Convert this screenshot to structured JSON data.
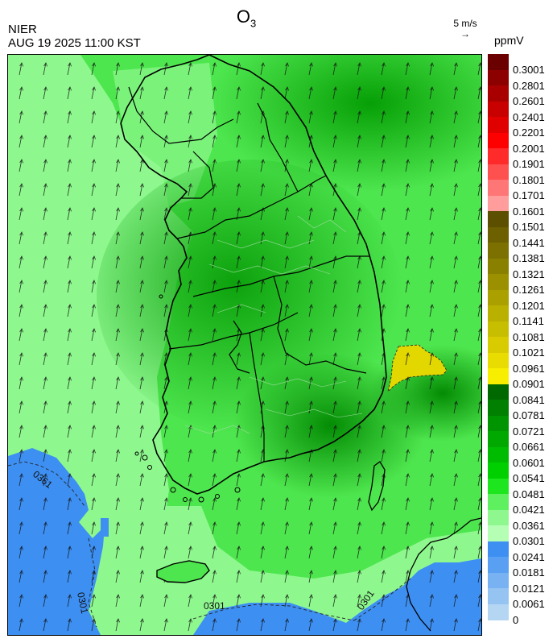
{
  "header": {
    "title_main": "O",
    "title_sub": "3",
    "agency": "NIER",
    "timestamp": "AUG 19 2025 11:00 KST",
    "wind_ref_label": "5 m/s",
    "wind_ref_arrow": "→"
  },
  "legend": {
    "unit": "ppmV",
    "levels": [
      {
        "label": "0.3001",
        "color": "#6b0000"
      },
      {
        "label": "0.2801",
        "color": "#8c0000"
      },
      {
        "label": "0.2601",
        "color": "#a80000"
      },
      {
        "label": "0.2401",
        "color": "#c80000"
      },
      {
        "label": "0.2201",
        "color": "#e00000"
      },
      {
        "label": "0.2001",
        "color": "#ff0000"
      },
      {
        "label": "0.1901",
        "color": "#ff2a2a"
      },
      {
        "label": "0.1801",
        "color": "#ff5050"
      },
      {
        "label": "0.1701",
        "color": "#ff7676"
      },
      {
        "label": "0.1601",
        "color": "#ff9c9c"
      },
      {
        "label": "0.1501",
        "color": "#5c5000"
      },
      {
        "label": "0.1441",
        "color": "#6c6000"
      },
      {
        "label": "0.1381",
        "color": "#7c7000"
      },
      {
        "label": "0.1321",
        "color": "#8a8000"
      },
      {
        "label": "0.1261",
        "color": "#9a9000"
      },
      {
        "label": "0.1201",
        "color": "#aaa000"
      },
      {
        "label": "0.1141",
        "color": "#bab000"
      },
      {
        "label": "0.1081",
        "color": "#c8be00"
      },
      {
        "label": "0.1021",
        "color": "#d8cc00"
      },
      {
        "label": "0.0961",
        "color": "#e8dc00"
      },
      {
        "label": "0.0901",
        "color": "#f8ee00"
      },
      {
        "label": "0.0841",
        "color": "#006a00"
      },
      {
        "label": "0.0781",
        "color": "#007f00"
      },
      {
        "label": "0.0721",
        "color": "#009400"
      },
      {
        "label": "0.0661",
        "color": "#00a800"
      },
      {
        "label": "0.0601",
        "color": "#00bc00"
      },
      {
        "label": "0.0541",
        "color": "#00d000"
      },
      {
        "label": "0.0481",
        "color": "#1ee61e"
      },
      {
        "label": "0.0421",
        "color": "#5ef05e"
      },
      {
        "label": "0.0361",
        "color": "#8ef88e"
      },
      {
        "label": "0.0301",
        "color": "#b4ffb4"
      },
      {
        "label": "0.0241",
        "color": "#3d8ff2"
      },
      {
        "label": "0.0181",
        "color": "#5aa0f2"
      },
      {
        "label": "0.0121",
        "color": "#78b2f2"
      },
      {
        "label": "0.0061",
        "color": "#96c4f2"
      },
      {
        "label": "0",
        "color": "#b4d6f2"
      }
    ]
  },
  "map": {
    "contour_labels": [
      "0361",
      "0301",
      "0301",
      "0301"
    ],
    "wind_direction": "southerly, arrows pointing north-northeast",
    "colors": {
      "background_green": "#4ee64e",
      "light_green": "#8ef88e",
      "dark_green": "#119d11",
      "ocean_blue": "#3d8ff2",
      "hotspot_yellow": "#e2d800",
      "boundary": "#000000",
      "province_line": "#9edc9e"
    }
  }
}
